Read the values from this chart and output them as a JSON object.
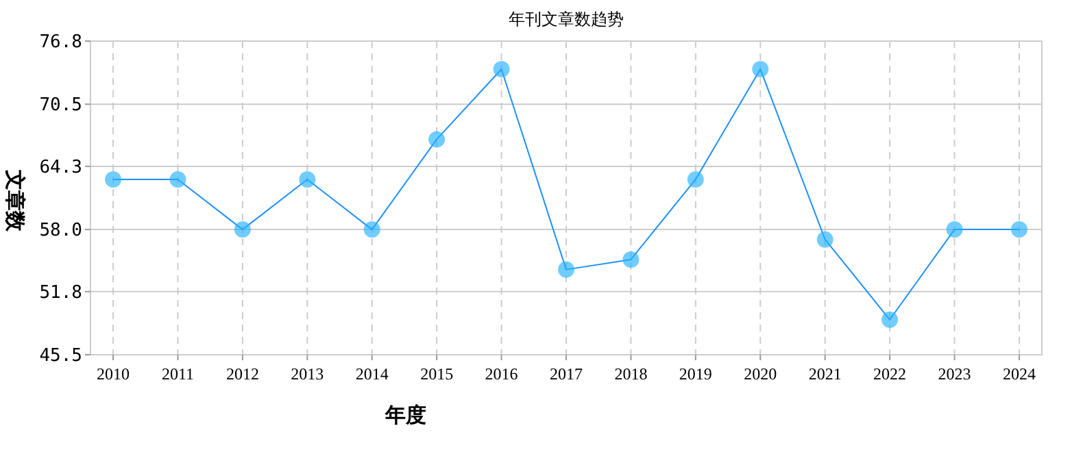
{
  "chart_data": {
    "type": "line",
    "title": "年刊文章数趋势",
    "xlabel": "年度",
    "ylabel": "文章数",
    "categories": [
      "2010",
      "2011",
      "2012",
      "2013",
      "2014",
      "2015",
      "2016",
      "2017",
      "2018",
      "2019",
      "2020",
      "2021",
      "2022",
      "2023",
      "2024"
    ],
    "series": [
      {
        "color": "#1e90ff",
        "values": [
          63,
          63,
          58,
          63,
          58,
          67,
          74,
          54,
          55,
          63,
          74,
          57,
          49,
          58,
          58
        ]
      }
    ],
    "ylim": [
      45.5,
      76.8
    ],
    "yticks": [
      45.5,
      51.8,
      {
        "value": 58,
        "label": "58.0"
      },
      64.3,
      70.5,
      76.8
    ],
    "grid": true,
    "marker": "circle",
    "line_style": "solid"
  }
}
